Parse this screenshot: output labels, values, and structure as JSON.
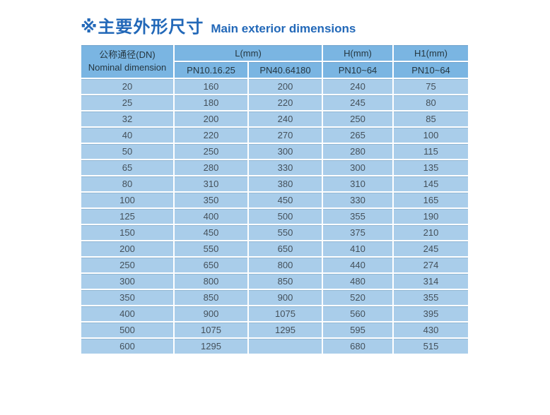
{
  "title": {
    "marker": "※",
    "zh": "主要外形尺寸",
    "en": "Main exterior dimensions",
    "color": "#2268b8"
  },
  "table": {
    "header": {
      "dn_line1": "公称通径(DN)",
      "dn_line2": "Nominal dimension",
      "l_group": "L(mm)",
      "l_sub1": "PN10.16.25",
      "l_sub2": "PN40.64180",
      "h_group": "H(mm)",
      "h_sub": "PN10~64",
      "h1_group": "H1(mm)",
      "h1_sub": "PN10~64"
    },
    "rows": [
      [
        "20",
        "160",
        "200",
        "240",
        "75"
      ],
      [
        "25",
        "180",
        "220",
        "245",
        "80"
      ],
      [
        "32",
        "200",
        "240",
        "250",
        "85"
      ],
      [
        "40",
        "220",
        "270",
        "265",
        "100"
      ],
      [
        "50",
        "250",
        "300",
        "280",
        "115"
      ],
      [
        "65",
        "280",
        "330",
        "300",
        "135"
      ],
      [
        "80",
        "310",
        "380",
        "310",
        "145"
      ],
      [
        "100",
        "350",
        "450",
        "330",
        "165"
      ],
      [
        "125",
        "400",
        "500",
        "355",
        "190"
      ],
      [
        "150",
        "450",
        "550",
        "375",
        "210"
      ],
      [
        "200",
        "550",
        "650",
        "410",
        "245"
      ],
      [
        "250",
        "650",
        "800",
        "440",
        "274"
      ],
      [
        "300",
        "800",
        "850",
        "480",
        "314"
      ],
      [
        "350",
        "850",
        "900",
        "520",
        "355"
      ],
      [
        "400",
        "900",
        "1075",
        "560",
        "395"
      ],
      [
        "500",
        "1075",
        "1295",
        "595",
        "430"
      ],
      [
        "600",
        "1295",
        "",
        "680",
        "515"
      ]
    ]
  },
  "colors": {
    "header_bg": "#7ab5e2",
    "cell_bg": "#a9cdea",
    "grid": "#ffffff",
    "header_text": "#253741",
    "cell_text": "#44505a",
    "title_text": "#2268b8"
  }
}
